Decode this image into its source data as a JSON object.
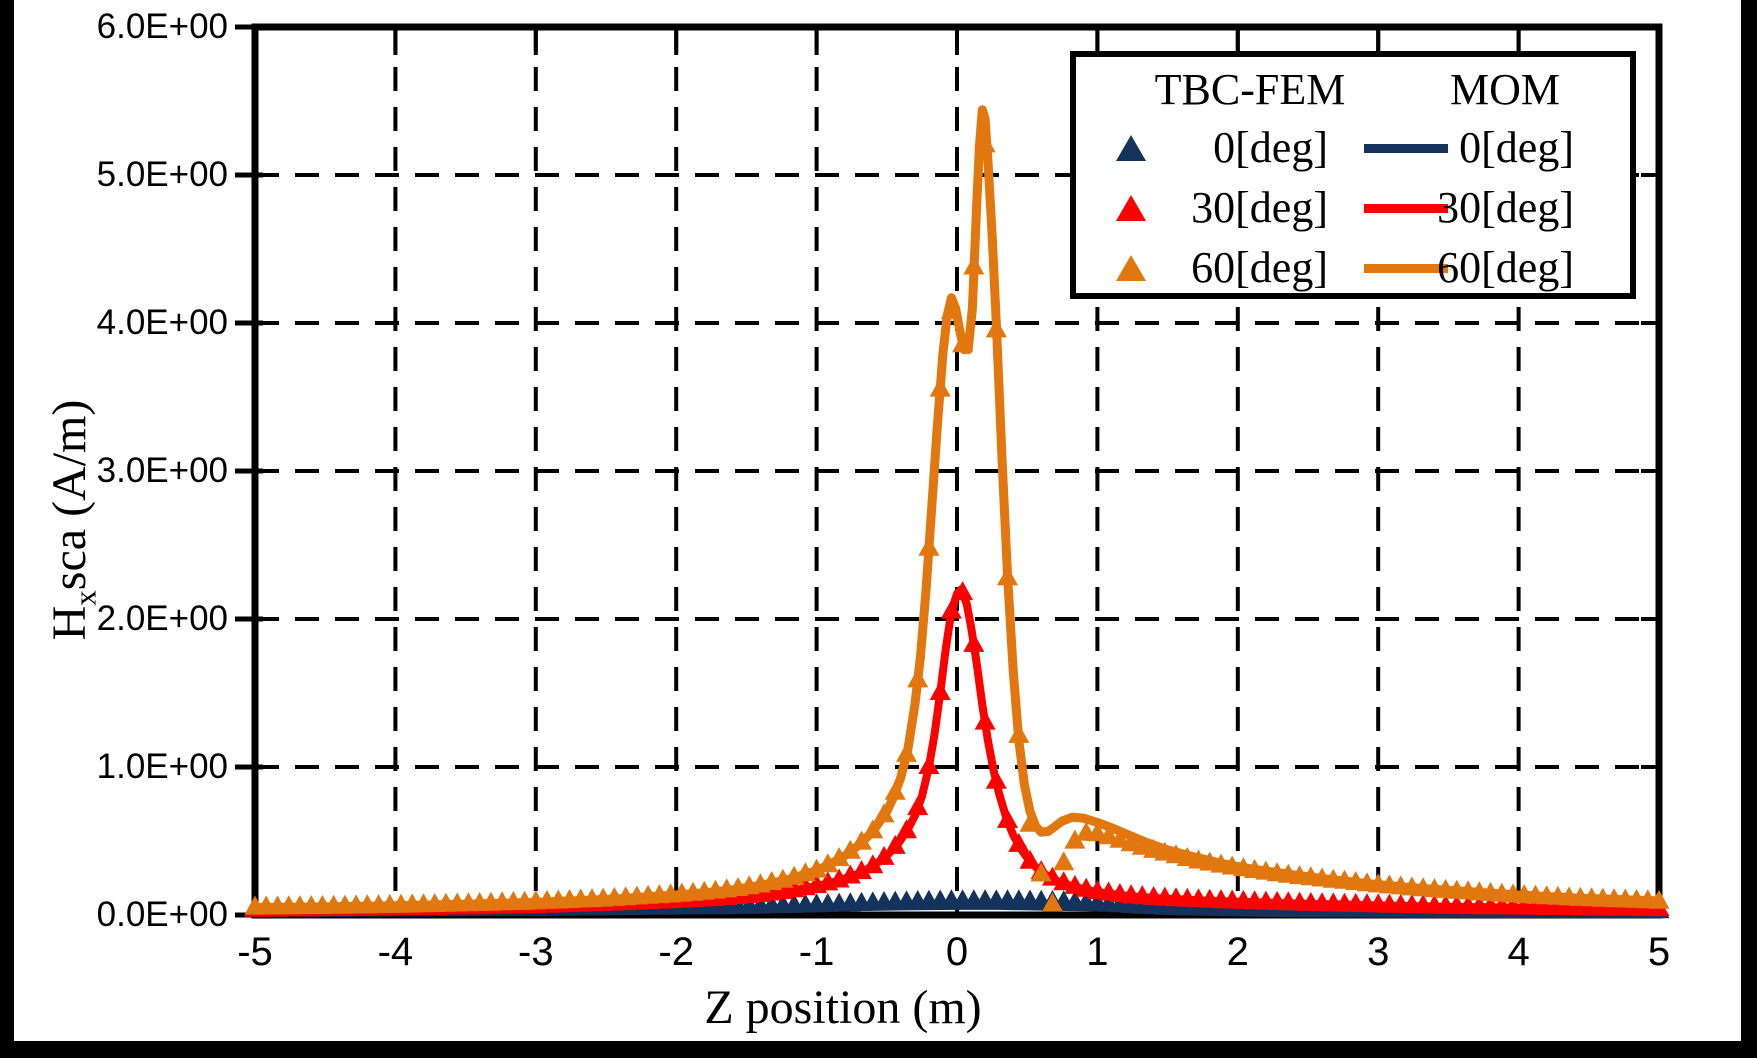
{
  "chart_data": {
    "type": "line+scatter",
    "title": "",
    "xlabel": "Z position  (m)",
    "ylabel": {
      "base": "H",
      "subscript": "x",
      "rest": "sca (A/m)"
    },
    "xlim": [
      -5,
      5
    ],
    "ylim": [
      0,
      6
    ],
    "x_tick_labels": [
      "-5",
      "-4",
      "-3",
      "-2",
      "-1",
      "0",
      "1",
      "2",
      "3",
      "4",
      "5"
    ],
    "y_tick_labels": [
      "0.0E+00",
      "1.0E+00",
      "2.0E+00",
      "3.0E+00",
      "4.0E+00",
      "5.0E+00",
      "6.0E+00"
    ],
    "grid": {
      "style": "dashed",
      "color": "#000000",
      "on": true
    },
    "frame_color": "#000000",
    "legend": {
      "col1_header": "TBC-FEM",
      "col2_header": "MOM",
      "rows": [
        {
          "label": "0[deg]",
          "color": "#14335C"
        },
        {
          "label": "30[deg]",
          "color": "#FB0100"
        },
        {
          "label": "60[deg]",
          "color": "#E1770E"
        }
      ]
    },
    "marker_step": 0.08,
    "series": [
      {
        "name": "0[deg]",
        "color": "#14335C",
        "line_width": 6,
        "line_points": [
          [
            -5,
            0.02
          ],
          [
            -4,
            0.022
          ],
          [
            -3,
            0.026
          ],
          [
            -2,
            0.032
          ],
          [
            -1.5,
            0.036
          ],
          [
            -1,
            0.042
          ],
          [
            -0.6,
            0.048
          ],
          [
            -0.3,
            0.052
          ],
          [
            0,
            0.055
          ],
          [
            0.3,
            0.055
          ],
          [
            0.6,
            0.05
          ],
          [
            0.9,
            0.045
          ],
          [
            1.2,
            0.04
          ],
          [
            1.5,
            0.034
          ],
          [
            2,
            0.03
          ],
          [
            2.5,
            0.027
          ],
          [
            3,
            0.025
          ],
          [
            4,
            0.022
          ],
          [
            5,
            0.02
          ]
        ],
        "marker_points": [
          [
            -5,
            0.035
          ],
          [
            -4,
            0.037
          ],
          [
            -3,
            0.042
          ],
          [
            -2,
            0.05
          ],
          [
            -1.5,
            0.055
          ],
          [
            -1,
            0.065
          ],
          [
            -0.7,
            0.075
          ],
          [
            -0.4,
            0.085
          ],
          [
            -0.1,
            0.092
          ],
          [
            0.2,
            0.094
          ],
          [
            0.5,
            0.092
          ],
          [
            0.8,
            0.085
          ],
          [
            1,
            0.075
          ],
          [
            1.2,
            0.062
          ],
          [
            1.5,
            0.048
          ],
          [
            2,
            0.038
          ],
          [
            2.5,
            0.032
          ],
          [
            3,
            0.03
          ],
          [
            4,
            0.027
          ],
          [
            5,
            0.026
          ]
        ]
      },
      {
        "name": "30[deg]",
        "color": "#FB0100",
        "line_width": 8,
        "line_points": [
          [
            -5,
            0.035
          ],
          [
            -4.5,
            0.04
          ],
          [
            -4,
            0.045
          ],
          [
            -3.5,
            0.052
          ],
          [
            -3,
            0.06
          ],
          [
            -2.5,
            0.075
          ],
          [
            -2,
            0.095
          ],
          [
            -1.7,
            0.11
          ],
          [
            -1.4,
            0.135
          ],
          [
            -1.2,
            0.16
          ],
          [
            -1,
            0.195
          ],
          [
            -0.85,
            0.23
          ],
          [
            -0.7,
            0.28
          ],
          [
            -0.6,
            0.33
          ],
          [
            -0.5,
            0.4
          ],
          [
            -0.42,
            0.48
          ],
          [
            -0.35,
            0.58
          ],
          [
            -0.3,
            0.67
          ],
          [
            -0.25,
            0.8
          ],
          [
            -0.2,
            1.0
          ],
          [
            -0.16,
            1.22
          ],
          [
            -0.12,
            1.5
          ],
          [
            -0.08,
            1.8
          ],
          [
            -0.04,
            2.05
          ],
          [
            0,
            2.17
          ],
          [
            0.03,
            2.2
          ],
          [
            0.07,
            2.1
          ],
          [
            0.1,
            1.95
          ],
          [
            0.14,
            1.7
          ],
          [
            0.18,
            1.42
          ],
          [
            0.22,
            1.18
          ],
          [
            0.26,
            0.98
          ],
          [
            0.3,
            0.82
          ],
          [
            0.35,
            0.66
          ],
          [
            0.4,
            0.54
          ],
          [
            0.46,
            0.44
          ],
          [
            0.52,
            0.36
          ],
          [
            0.6,
            0.29
          ],
          [
            0.7,
            0.235
          ],
          [
            0.8,
            0.2
          ],
          [
            0.9,
            0.175
          ],
          [
            1,
            0.155
          ],
          [
            1.2,
            0.13
          ],
          [
            1.4,
            0.115
          ],
          [
            1.7,
            0.1
          ],
          [
            2,
            0.09
          ],
          [
            2.5,
            0.075
          ],
          [
            3,
            0.065
          ],
          [
            3.5,
            0.055
          ],
          [
            4,
            0.05
          ],
          [
            4.5,
            0.045
          ],
          [
            5,
            0.04
          ]
        ]
      },
      {
        "name": "60[deg]",
        "color": "#E1770E",
        "line_width": 9,
        "line_points": [
          [
            -5,
            0.05
          ],
          [
            -4.5,
            0.055
          ],
          [
            -4,
            0.062
          ],
          [
            -3.5,
            0.072
          ],
          [
            -3,
            0.085
          ],
          [
            -2.5,
            0.105
          ],
          [
            -2,
            0.135
          ],
          [
            -1.8,
            0.15
          ],
          [
            -1.6,
            0.17
          ],
          [
            -1.4,
            0.2
          ],
          [
            -1.2,
            0.24
          ],
          [
            -1,
            0.3
          ],
          [
            -0.9,
            0.345
          ],
          [
            -0.8,
            0.4
          ],
          [
            -0.7,
            0.47
          ],
          [
            -0.6,
            0.565
          ],
          [
            -0.5,
            0.7
          ],
          [
            -0.45,
            0.8
          ],
          [
            -0.4,
            0.93
          ],
          [
            -0.35,
            1.12
          ],
          [
            -0.3,
            1.42
          ],
          [
            -0.26,
            1.75
          ],
          [
            -0.22,
            2.2
          ],
          [
            -0.18,
            2.75
          ],
          [
            -0.14,
            3.3
          ],
          [
            -0.1,
            3.8
          ],
          [
            -0.07,
            4.05
          ],
          [
            -0.04,
            4.17
          ],
          [
            -0.01,
            4.1
          ],
          [
            0.02,
            3.95
          ],
          [
            0.05,
            3.82
          ],
          [
            0.08,
            3.82
          ],
          [
            0.11,
            4.1
          ],
          [
            0.14,
            4.8
          ],
          [
            0.16,
            5.2
          ],
          [
            0.18,
            5.44
          ],
          [
            0.2,
            5.38
          ],
          [
            0.22,
            5.1
          ],
          [
            0.25,
            4.6
          ],
          [
            0.28,
            4.0
          ],
          [
            0.32,
            3.1
          ],
          [
            0.36,
            2.3
          ],
          [
            0.4,
            1.65
          ],
          [
            0.44,
            1.18
          ],
          [
            0.48,
            0.88
          ],
          [
            0.52,
            0.7
          ],
          [
            0.56,
            0.6
          ],
          [
            0.6,
            0.56
          ],
          [
            0.65,
            0.565
          ],
          [
            0.7,
            0.6
          ],
          [
            0.75,
            0.635
          ],
          [
            0.82,
            0.66
          ],
          [
            0.9,
            0.655
          ],
          [
            1,
            0.625
          ],
          [
            1.1,
            0.59
          ],
          [
            1.2,
            0.55
          ],
          [
            1.35,
            0.49
          ],
          [
            1.5,
            0.44
          ],
          [
            1.7,
            0.39
          ],
          [
            1.9,
            0.345
          ],
          [
            2.1,
            0.31
          ],
          [
            2.4,
            0.27
          ],
          [
            2.7,
            0.235
          ],
          [
            3,
            0.205
          ],
          [
            3.3,
            0.18
          ],
          [
            3.6,
            0.16
          ],
          [
            4,
            0.135
          ],
          [
            4.4,
            0.115
          ],
          [
            4.7,
            0.105
          ],
          [
            5,
            0.095
          ]
        ],
        "marker_points": [
          [
            -5,
            0.05
          ],
          [
            -4.5,
            0.055
          ],
          [
            -4,
            0.062
          ],
          [
            -3.5,
            0.072
          ],
          [
            -3,
            0.085
          ],
          [
            -2.5,
            0.105
          ],
          [
            -2,
            0.135
          ],
          [
            -1.8,
            0.15
          ],
          [
            -1.6,
            0.17
          ],
          [
            -1.4,
            0.2
          ],
          [
            -1.2,
            0.24
          ],
          [
            -1,
            0.3
          ],
          [
            -0.9,
            0.345
          ],
          [
            -0.8,
            0.4
          ],
          [
            -0.7,
            0.47
          ],
          [
            -0.6,
            0.565
          ],
          [
            -0.5,
            0.7
          ],
          [
            -0.45,
            0.8
          ],
          [
            -0.4,
            0.93
          ],
          [
            -0.35,
            1.12
          ],
          [
            -0.3,
            1.42
          ],
          [
            -0.26,
            1.75
          ],
          [
            -0.22,
            2.2
          ],
          [
            -0.18,
            2.75
          ],
          [
            -0.14,
            3.3
          ],
          [
            -0.1,
            3.8
          ],
          [
            -0.06,
            4.1
          ],
          [
            -0.02,
            4.05
          ],
          [
            0.02,
            3.9
          ],
          [
            0.06,
            3.8
          ],
          [
            0.1,
            3.95
          ],
          [
            0.14,
            4.8
          ],
          [
            0.18,
            5.35
          ],
          [
            0.22,
            5.05
          ],
          [
            0.26,
            4.45
          ],
          [
            0.3,
            3.45
          ],
          [
            0.34,
            2.6
          ],
          [
            0.38,
            1.95
          ],
          [
            0.42,
            1.4
          ],
          [
            0.46,
            1.02
          ],
          [
            0.5,
            0.72
          ],
          [
            0.54,
            0.5
          ],
          [
            0.58,
            0.32
          ],
          [
            0.64,
            0.18
          ],
          [
            0.68,
            0.07
          ],
          [
            0.72,
            0.24
          ],
          [
            0.8,
            0.46
          ],
          [
            0.9,
            0.55
          ],
          [
            1,
            0.545
          ],
          [
            1.1,
            0.52
          ],
          [
            1.2,
            0.49
          ],
          [
            1.35,
            0.445
          ],
          [
            1.5,
            0.41
          ],
          [
            1.7,
            0.365
          ],
          [
            1.9,
            0.33
          ],
          [
            2.1,
            0.3
          ],
          [
            2.4,
            0.26
          ],
          [
            2.7,
            0.23
          ],
          [
            3,
            0.2
          ],
          [
            3.3,
            0.175
          ],
          [
            3.6,
            0.155
          ],
          [
            4,
            0.13
          ],
          [
            4.4,
            0.11
          ],
          [
            4.7,
            0.1
          ],
          [
            5,
            0.09
          ]
        ]
      }
    ]
  }
}
